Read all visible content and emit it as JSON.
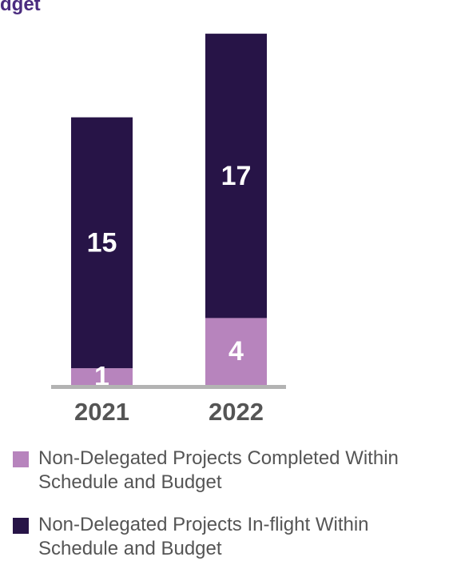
{
  "title_fragment": "dget",
  "chart_data": {
    "type": "bar",
    "stacked": true,
    "categories": [
      "2021",
      "2022"
    ],
    "series": [
      {
        "name": "Non-Delegated Projects Completed Within Schedule and Budget",
        "values": [
          1,
          4
        ],
        "color": "#b784bd"
      },
      {
        "name": "Non-Delegated Projects In-flight Within Schedule and Budget",
        "values": [
          15,
          17
        ],
        "color": "#271447"
      }
    ],
    "legend_position": "bottom",
    "grid": false
  }
}
